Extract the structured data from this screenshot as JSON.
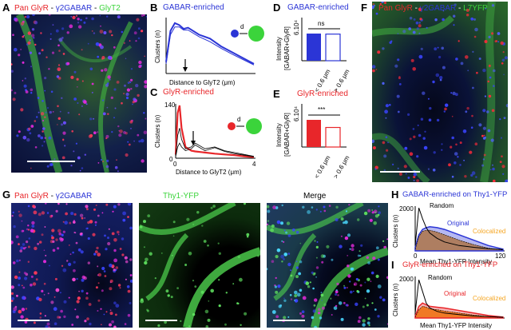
{
  "panels": {
    "A": {
      "letter": "A",
      "t1": "Pan GlyR",
      "t2": "γ2GABAR",
      "t3": "GlyT2"
    },
    "B": {
      "letter": "B",
      "title": "GABAR-enriched",
      "ylabel": "Clusters (n)",
      "xlabel": "Distance to GlyT2 (μm)",
      "d": "d"
    },
    "C": {
      "letter": "C",
      "title": "GlyR-enriched",
      "ylabel": "Clusters (n)",
      "xlabel": "Distance to GlyT2 (μm)",
      "d": "d",
      "ytick_top": "140",
      "ytick_bottom": "0",
      "xtick_left": "0",
      "xtick_right": "4"
    },
    "D": {
      "letter": "D",
      "title": "GABAR-enriched",
      "ylabel1": "Intensity",
      "ylabel2": "[GABAR+GlyR]",
      "ytick": "6.10⁴",
      "sig": "ns",
      "cat1": "< 0.6 μm",
      "cat2": "> 0.6 μm"
    },
    "E": {
      "letter": "E",
      "title": "GlyR-enriched",
      "ylabel1": "Intensity",
      "ylabel2": "[GABAR+GlyR]",
      "ytick": "6.10⁴",
      "sig": "***",
      "cat1": "< 0.6 μm",
      "cat2": "> 0.6 μm"
    },
    "F": {
      "letter": "F",
      "t1": "Pan GlyR",
      "t2": "γ2GABAR",
      "t3": "L7YFP"
    },
    "G": {
      "letter": "G",
      "t1": "Pan GlyR",
      "t2": "γ2GABAR",
      "t_mid": "Thy1-YFP",
      "t_right": "Merge"
    },
    "H": {
      "letter": "H",
      "title": "GABAR-enriched on Thy1-YFP",
      "ylabel": "Clusters (n)",
      "xlabel": "Mean Thy1-YFP Intensity",
      "ytick": "2000",
      "x0": "0",
      "xmax": "120",
      "random": "Random",
      "original": "Original",
      "colocalized": "Colocalized"
    },
    "I": {
      "letter": "I",
      "title": "GlyR-enriched on Thy1-YFP",
      "ylabel": "Clusters (n)",
      "xlabel": "Mean Thy1-YFP Intensity",
      "ytick": "2000",
      "x0": "0",
      "xmax": "120",
      "random": "Random",
      "original": "Original",
      "colocalized": "Colocalized"
    }
  },
  "colors": {
    "red": "#e8262a",
    "blue": "#2b35d6",
    "green": "#3bd43b",
    "orange": "#f5a623"
  },
  "chart_data": [
    {
      "type": "line",
      "panel": "B",
      "title": "GABAR-enriched",
      "xlabel": "Distance to GlyT2 (μm)",
      "ylabel": "Clusters (n)",
      "xlim": [
        0,
        4
      ],
      "series": [
        {
          "x": [
            0,
            0.2,
            0.4,
            0.6,
            0.8,
            1,
            1.5,
            2,
            2.5,
            3,
            3.5,
            4
          ],
          "values": [
            30,
            110,
            130,
            125,
            115,
            118,
            100,
            90,
            70,
            55,
            40,
            25
          ]
        },
        {
          "x": [
            0,
            0.2,
            0.4,
            0.6,
            0.8,
            1,
            1.5,
            2,
            2.5,
            3,
            3.5,
            4
          ],
          "values": [
            25,
            100,
            120,
            120,
            112,
            112,
            95,
            82,
            65,
            50,
            36,
            22
          ]
        }
      ]
    },
    {
      "type": "line",
      "panel": "C",
      "title": "GlyR-enriched",
      "xlabel": "Distance to GlyT2 (μm)",
      "ylabel": "Clusters (n)",
      "ylim": [
        0,
        140
      ],
      "xlim": [
        0,
        4
      ],
      "series": [
        {
          "x": [
            0,
            0.1,
            0.2,
            0.3,
            0.5,
            0.8,
            1,
            1.5,
            2,
            2.5,
            3,
            3.5,
            4
          ],
          "values": [
            10,
            120,
            140,
            80,
            30,
            20,
            18,
            15,
            12,
            10,
            8,
            5,
            3
          ]
        },
        {
          "x": [
            0,
            0.1,
            0.2,
            0.3,
            0.5,
            0.8,
            1,
            1.5,
            2,
            2.5,
            3,
            3.5,
            4
          ],
          "values": [
            5,
            60,
            80,
            50,
            25,
            30,
            40,
            25,
            30,
            20,
            15,
            10,
            5
          ]
        },
        {
          "x": [
            0,
            0.1,
            0.2,
            0.3,
            0.5,
            0.8,
            1,
            1.5,
            2,
            2.5,
            3,
            3.5,
            4
          ],
          "values": [
            4,
            30,
            40,
            30,
            20,
            25,
            35,
            20,
            28,
            18,
            12,
            8,
            4
          ]
        }
      ]
    },
    {
      "type": "bar",
      "panel": "D",
      "title": "GABAR-enriched",
      "categories": [
        "< 0.6 μm",
        "> 0.6 μm"
      ],
      "values": [
        1.0,
        0.98
      ],
      "ylabel": "Intensity [GABAR+GlyR]"
    },
    {
      "type": "bar",
      "panel": "E",
      "title": "GlyR-enriched",
      "categories": [
        "< 0.6 μm",
        "> 0.6 μm"
      ],
      "values": [
        1.0,
        0.72
      ],
      "ylabel": "Intensity [GABAR+GlyR]"
    },
    {
      "type": "area",
      "panel": "H",
      "title": "GABAR-enriched on Thy1-YFP",
      "xlabel": "Mean Thy1-YFP Intensity",
      "ylabel": "Clusters (n)",
      "xlim": [
        0,
        120
      ],
      "series": [
        {
          "name": "Random",
          "x": [
            0,
            5,
            10,
            15,
            20,
            30,
            40,
            60,
            80,
            100,
            120
          ],
          "values": [
            300,
            2400,
            1800,
            1300,
            1000,
            700,
            500,
            300,
            200,
            120,
            80
          ]
        },
        {
          "name": "Original",
          "x": [
            0,
            5,
            10,
            15,
            20,
            30,
            40,
            60,
            80,
            100,
            120
          ],
          "values": [
            200,
            900,
            1200,
            1300,
            1350,
            1300,
            1200,
            900,
            600,
            300,
            100
          ]
        },
        {
          "name": "Colocalized",
          "x": [
            0,
            5,
            10,
            15,
            20,
            30,
            40,
            60,
            80,
            100,
            120
          ],
          "values": [
            100,
            800,
            1100,
            1150,
            1150,
            1050,
            900,
            600,
            350,
            150,
            50
          ]
        }
      ]
    },
    {
      "type": "area",
      "panel": "I",
      "title": "GlyR-enriched on Thy1-YFP",
      "xlabel": "Mean Thy1-YFP Intensity",
      "ylabel": "Clusters (n)",
      "xlim": [
        0,
        120
      ],
      "series": [
        {
          "name": "Random",
          "x": [
            0,
            5,
            10,
            15,
            20,
            30,
            40,
            60,
            80,
            100,
            120
          ],
          "values": [
            300,
            2300,
            1600,
            900,
            600,
            400,
            300,
            200,
            120,
            80,
            50
          ]
        },
        {
          "name": "Original",
          "x": [
            0,
            5,
            10,
            15,
            20,
            30,
            40,
            60,
            80,
            100,
            120
          ],
          "values": [
            100,
            700,
            900,
            800,
            700,
            650,
            600,
            450,
            300,
            150,
            60
          ]
        },
        {
          "name": "Colocalized",
          "x": [
            0,
            5,
            10,
            15,
            20,
            30,
            40,
            60,
            80,
            100,
            120
          ],
          "values": [
            50,
            500,
            700,
            650,
            550,
            500,
            420,
            300,
            180,
            80,
            30
          ]
        }
      ]
    }
  ]
}
